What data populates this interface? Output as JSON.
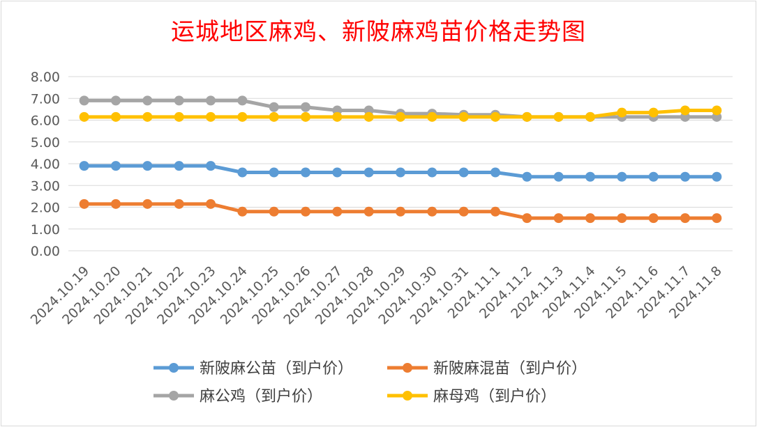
{
  "chart_data": {
    "type": "line",
    "title": "运城地区麻鸡、新陂麻鸡苗价格走势图",
    "xlabel": "",
    "ylabel": "",
    "ylim": [
      0,
      8
    ],
    "yticks": [
      "0.00",
      "1.00",
      "2.00",
      "3.00",
      "4.00",
      "5.00",
      "6.00",
      "7.00",
      "8.00"
    ],
    "grid": true,
    "legend_position": "bottom",
    "categories": [
      "2024.10.19",
      "2024.10.20",
      "2024.10.21",
      "2024.10.22",
      "2024.10.23",
      "2024.10.24",
      "2024.10.25",
      "2024.10.26",
      "2024.10.27",
      "2024.10.28",
      "2024.10.29",
      "2024.10.30",
      "2024.10.31",
      "2024.11.1",
      "2024.11.2",
      "2024.11.3",
      "2024.11.4",
      "2024.11.5",
      "2024.11.6",
      "2024.11.7",
      "2024.11.8"
    ],
    "series": [
      {
        "name": "新陂麻公苗（到户价）",
        "color": "#5b9bd5",
        "values": [
          3.9,
          3.9,
          3.9,
          3.9,
          3.9,
          3.6,
          3.6,
          3.6,
          3.6,
          3.6,
          3.6,
          3.6,
          3.6,
          3.6,
          3.4,
          3.4,
          3.4,
          3.4,
          3.4,
          3.4,
          3.4
        ]
      },
      {
        "name": "新陂麻混苗（到户价）",
        "color": "#ed7d31",
        "values": [
          2.15,
          2.15,
          2.15,
          2.15,
          2.15,
          1.8,
          1.8,
          1.8,
          1.8,
          1.8,
          1.8,
          1.8,
          1.8,
          1.8,
          1.5,
          1.5,
          1.5,
          1.5,
          1.5,
          1.5,
          1.5
        ]
      },
      {
        "name": "麻公鸡（到户价）",
        "color": "#a5a5a5",
        "values": [
          6.9,
          6.9,
          6.9,
          6.9,
          6.9,
          6.9,
          6.6,
          6.6,
          6.45,
          6.45,
          6.3,
          6.3,
          6.25,
          6.25,
          6.15,
          6.15,
          6.15,
          6.15,
          6.15,
          6.15,
          6.15
        ]
      },
      {
        "name": "麻母鸡（到户价）",
        "color": "#ffc000",
        "values": [
          6.15,
          6.15,
          6.15,
          6.15,
          6.15,
          6.15,
          6.15,
          6.15,
          6.15,
          6.15,
          6.15,
          6.15,
          6.15,
          6.15,
          6.15,
          6.15,
          6.15,
          6.35,
          6.35,
          6.45,
          6.45
        ]
      }
    ]
  }
}
